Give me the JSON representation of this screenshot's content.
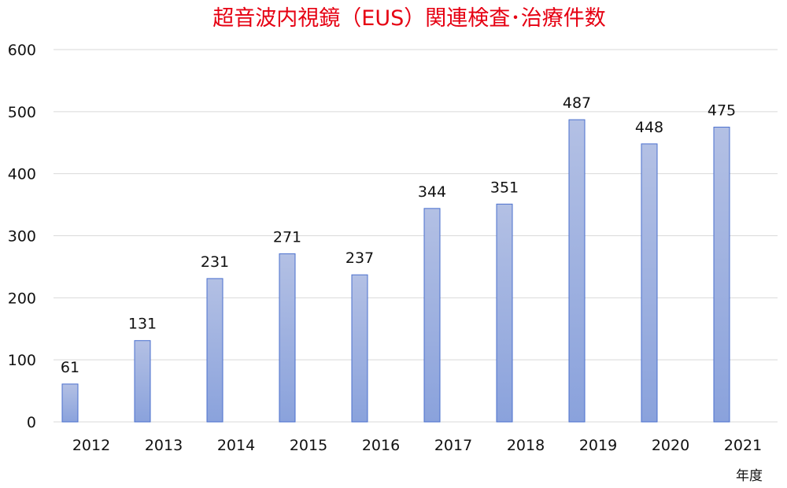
{
  "chart_data": {
    "type": "bar",
    "title": "超音波内視鏡（EUS）関連検査･治療件数",
    "xlabel": "年度",
    "ylabel": "",
    "categories": [
      "2012",
      "2013",
      "2014",
      "2015",
      "2016",
      "2017",
      "2018",
      "2019",
      "2020",
      "2021"
    ],
    "values": [
      61,
      131,
      231,
      271,
      237,
      344,
      351,
      487,
      448,
      475
    ],
    "ylim": [
      0,
      600
    ],
    "yticks": [
      0,
      100,
      200,
      300,
      400,
      500,
      600
    ],
    "grid": true,
    "legend": "none",
    "colors": {
      "bar_top": "#b3c0e4",
      "bar_bottom": "#8aa2dc",
      "bar_border": "#4a6fce",
      "title": "#e60012"
    }
  }
}
